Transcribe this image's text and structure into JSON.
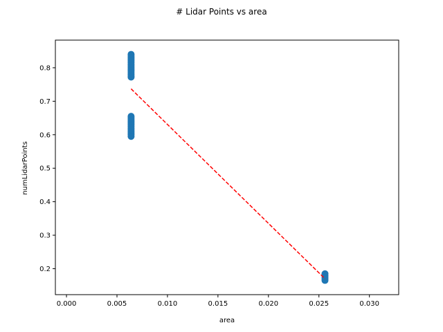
{
  "chart_data": {
    "type": "scatter",
    "title": "# Lidar Points vs area",
    "xlabel": "area",
    "ylabel": "numLidarPoints",
    "xlim": [
      -0.0011,
      0.0329
    ],
    "ylim": [
      0.1225,
      0.8825
    ],
    "xticks": [
      0.0,
      0.005,
      0.01,
      0.015,
      0.02,
      0.025,
      0.03
    ],
    "xtick_labels": [
      "0.000",
      "0.005",
      "0.010",
      "0.015",
      "0.020",
      "0.025",
      "0.030"
    ],
    "yticks": [
      0.2,
      0.3,
      0.4,
      0.5,
      0.6,
      0.7,
      0.8
    ],
    "ytick_labels": [
      "0.2",
      "0.3",
      "0.4",
      "0.5",
      "0.6",
      "0.7",
      "0.8"
    ],
    "grid": false,
    "series": [
      {
        "kind": "points",
        "color": "#1f77b4",
        "points": [
          [
            0.0064,
            0.84
          ],
          [
            0.0064,
            0.835
          ],
          [
            0.0064,
            0.83
          ],
          [
            0.0064,
            0.825
          ],
          [
            0.0064,
            0.82
          ],
          [
            0.0064,
            0.815
          ],
          [
            0.0064,
            0.81
          ],
          [
            0.0064,
            0.805
          ],
          [
            0.0064,
            0.8
          ],
          [
            0.0064,
            0.795
          ],
          [
            0.0064,
            0.79
          ],
          [
            0.0064,
            0.785
          ],
          [
            0.0064,
            0.78
          ],
          [
            0.0064,
            0.775
          ],
          [
            0.0064,
            0.772
          ],
          [
            0.0064,
            0.655
          ],
          [
            0.0064,
            0.65
          ],
          [
            0.0064,
            0.645
          ],
          [
            0.0064,
            0.64
          ],
          [
            0.0064,
            0.635
          ],
          [
            0.0064,
            0.63
          ],
          [
            0.0064,
            0.625
          ],
          [
            0.0064,
            0.62
          ],
          [
            0.0064,
            0.615
          ],
          [
            0.0064,
            0.61
          ],
          [
            0.0064,
            0.605
          ],
          [
            0.0064,
            0.6
          ],
          [
            0.0064,
            0.595
          ],
          [
            0.0256,
            0.185
          ],
          [
            0.0256,
            0.18
          ],
          [
            0.0256,
            0.175
          ],
          [
            0.0256,
            0.17
          ],
          [
            0.0256,
            0.165
          ]
        ]
      },
      {
        "kind": "line",
        "style": "dashed",
        "color": "#ff0000",
        "points": [
          [
            0.0064,
            0.737
          ],
          [
            0.0256,
            0.17
          ]
        ]
      }
    ]
  }
}
